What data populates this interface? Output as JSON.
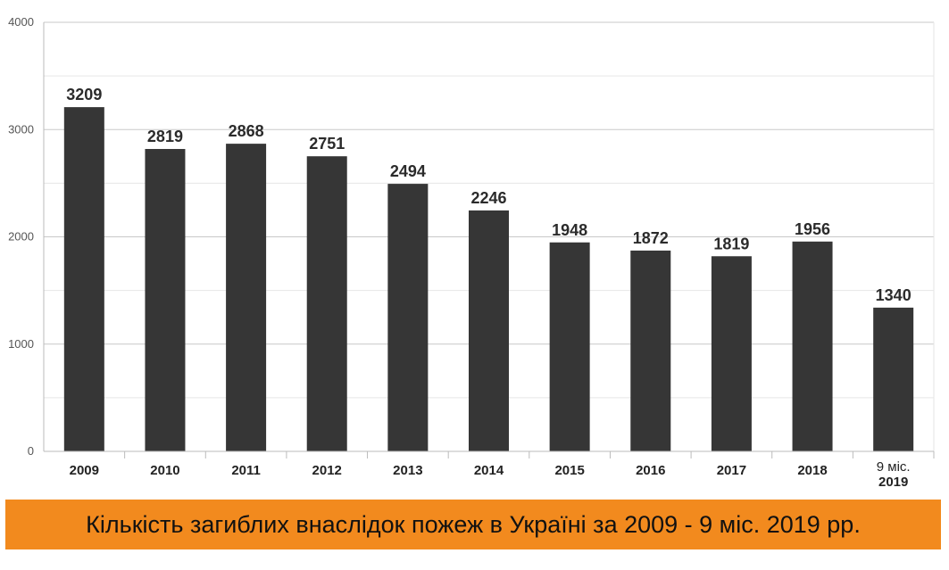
{
  "colors": {
    "bar": "#363636",
    "grid_major": "#c8c8c8",
    "grid_minor": "#e6e6e6",
    "axis": "#bbbbbb",
    "banner": "#f28a1e"
  },
  "chart_data": {
    "type": "bar",
    "title": "Кількість загиблих внаслідок пожеж в Україні за 2009 - 9 міс. 2019 рр.",
    "categories": [
      "2009",
      "2010",
      "2011",
      "2012",
      "2013",
      "2014",
      "2015",
      "2016",
      "2017",
      "2018",
      "9 міс.\n2019"
    ],
    "values": [
      3209,
      2819,
      2868,
      2751,
      2494,
      2246,
      1948,
      1872,
      1819,
      1956,
      1340
    ],
    "ylim": [
      0,
      4000
    ],
    "yticks": [
      0,
      1000,
      2000,
      3000,
      4000
    ],
    "grid": true,
    "legend": "none",
    "xlabel": "",
    "ylabel": ""
  }
}
